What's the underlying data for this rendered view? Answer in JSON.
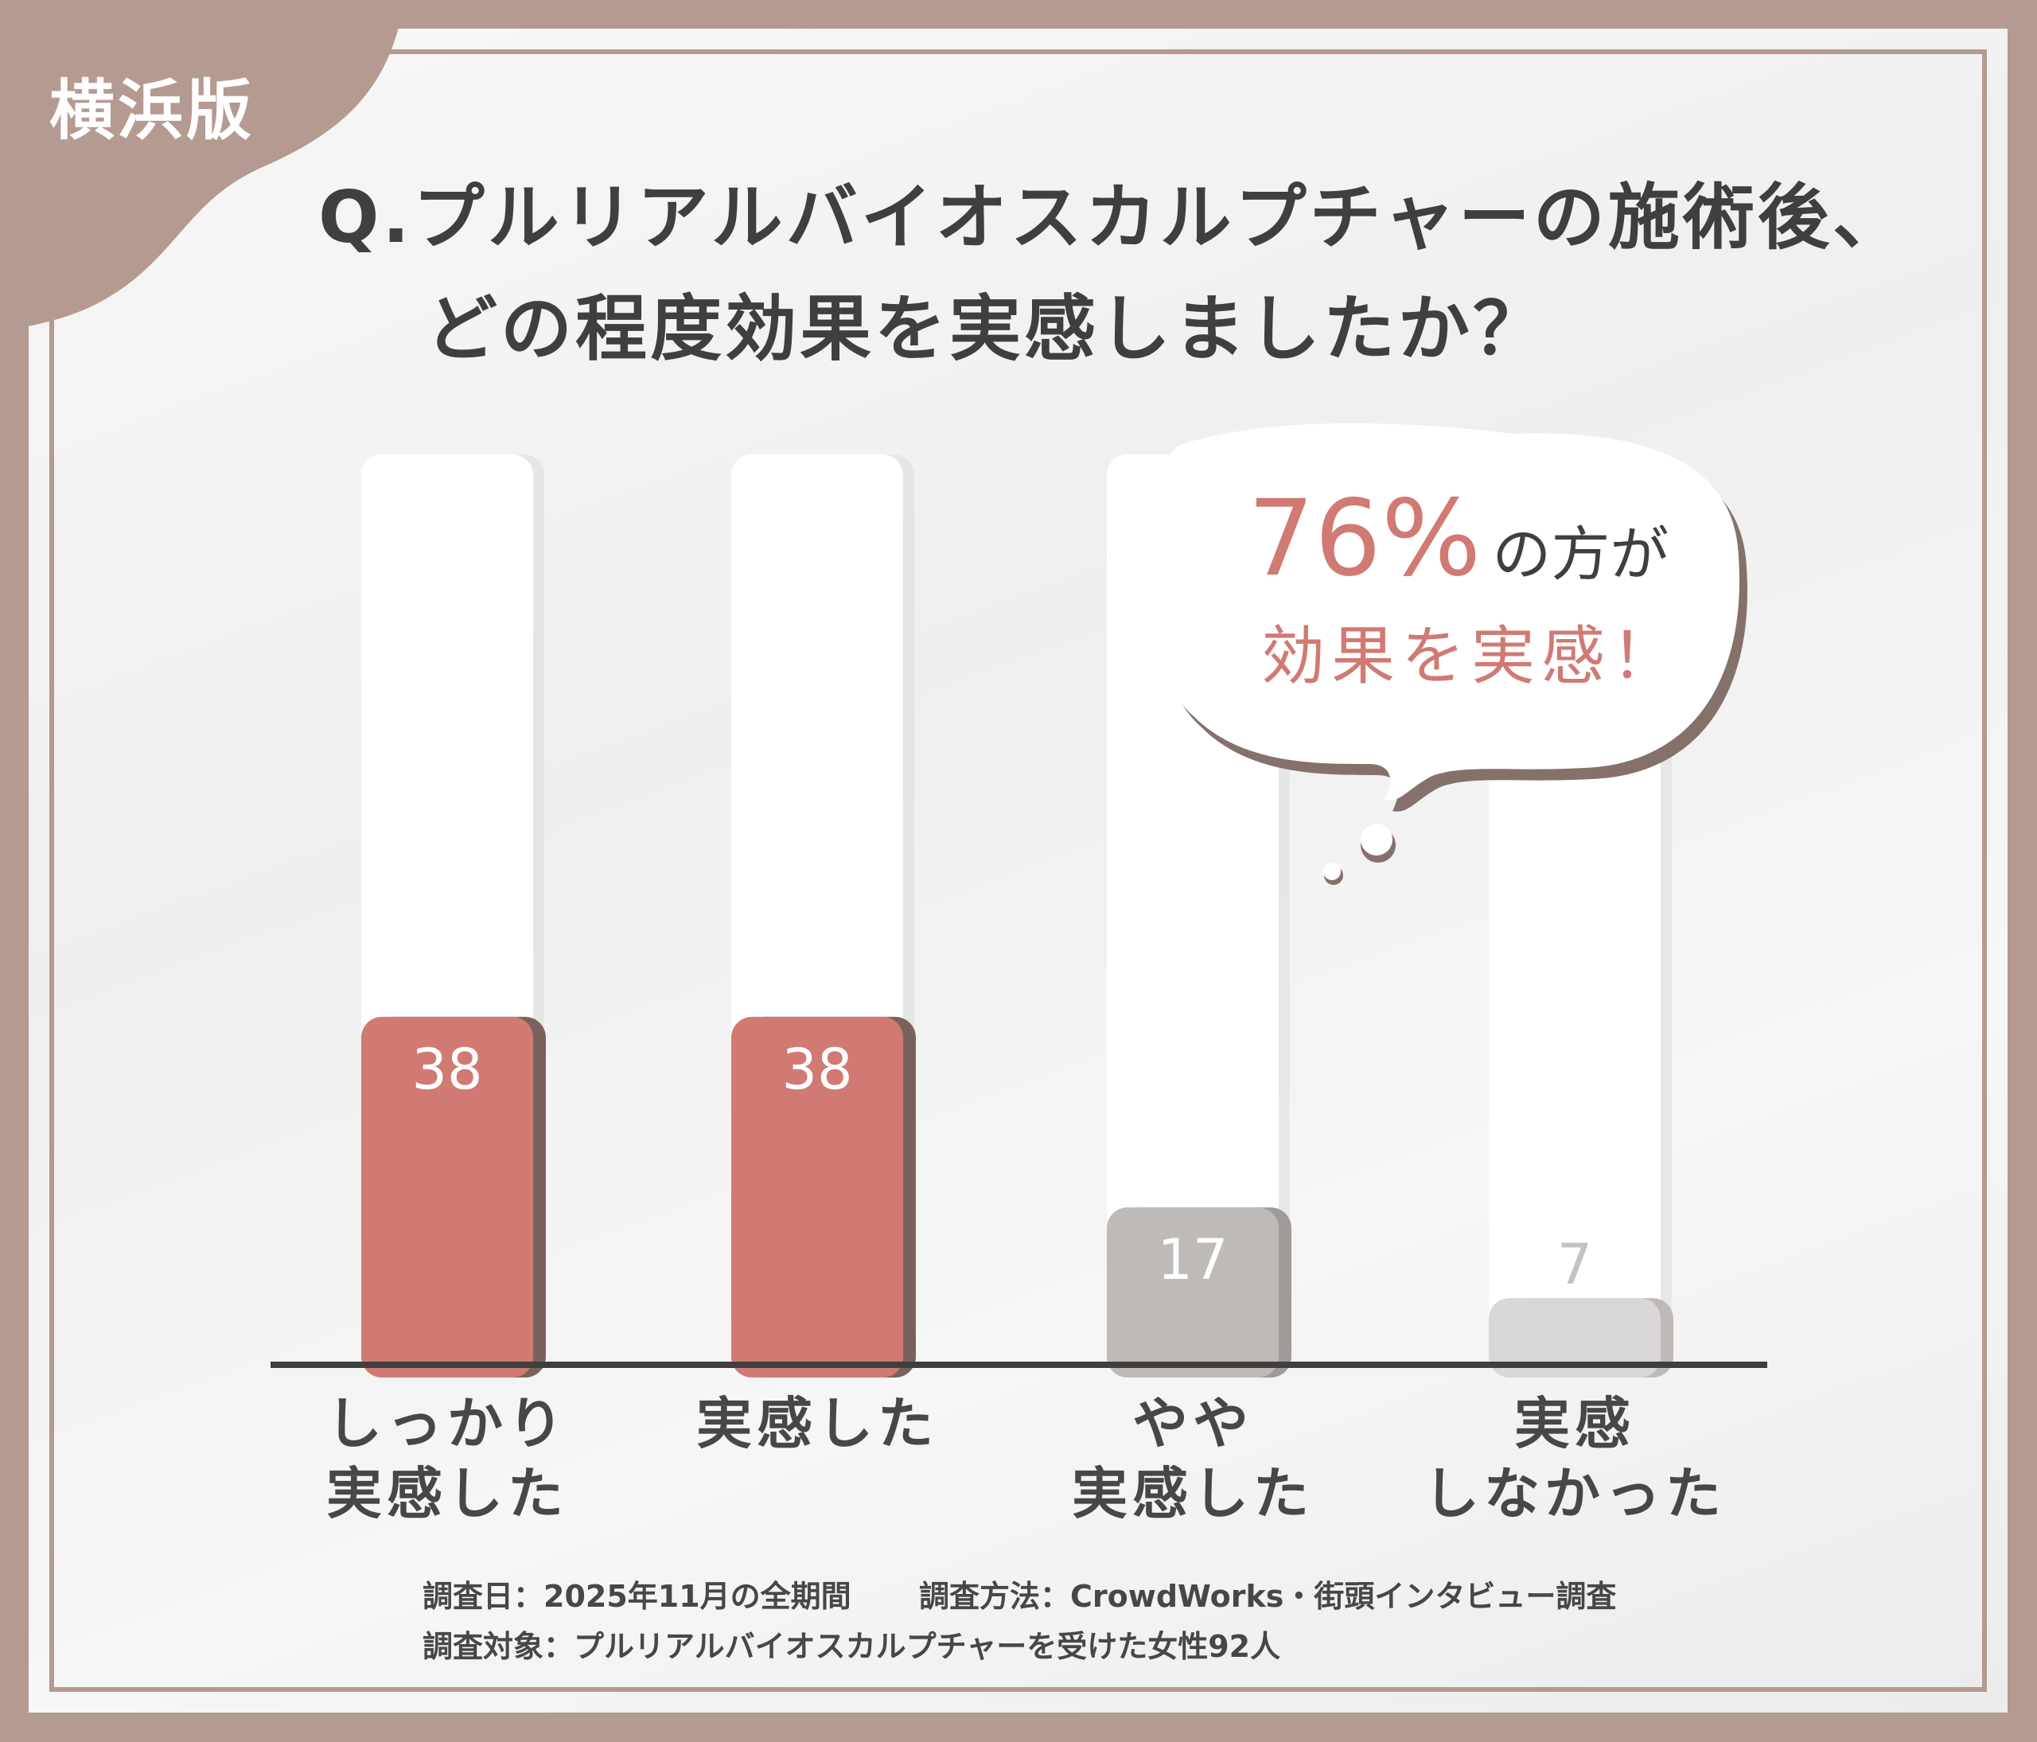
{
  "edition_tag": "横浜版",
  "title": {
    "line1": "Q.プルリアルバイオスカルプチャーの施術後、",
    "line2": "どの程度効果を実感しましたか？"
  },
  "callout": {
    "percent": "76%",
    "percent_suffix": "の方が",
    "line2": "効果を実感！"
  },
  "chart_data": {
    "type": "bar",
    "categories": [
      [
        "しっかり",
        "実感した"
      ],
      [
        "実感した"
      ],
      [
        "やや",
        "実感した"
      ],
      [
        "実感",
        "しなかった"
      ]
    ],
    "values": [
      38,
      38,
      17,
      7
    ],
    "value_labels": [
      "38",
      "38",
      "17",
      "7"
    ],
    "ylim": [
      0,
      100
    ],
    "unit": "%",
    "grid": false,
    "colors": [
      "#d07a73",
      "#d07a73",
      "#bdbab8",
      "#dad8d7"
    ],
    "shadow_colors": [
      "#7a625c",
      "#7a625c",
      "#9e9b99",
      "#bdbab8"
    ],
    "label_colors": [
      "#ffffff",
      "#ffffff",
      "#ffffff",
      "#c4c1bf"
    ]
  },
  "footer": {
    "survey_date": "調査日：2025年11月の全期間",
    "survey_method": "調査方法：CrowdWorks・街頭インタビュー調査",
    "survey_target": "調査対象：プルリアルバイオスカルプチャーを受けた女性92人"
  },
  "colors": {
    "background": "#b49a90",
    "accent": "#d07a73",
    "text": "#3f3f3f"
  }
}
